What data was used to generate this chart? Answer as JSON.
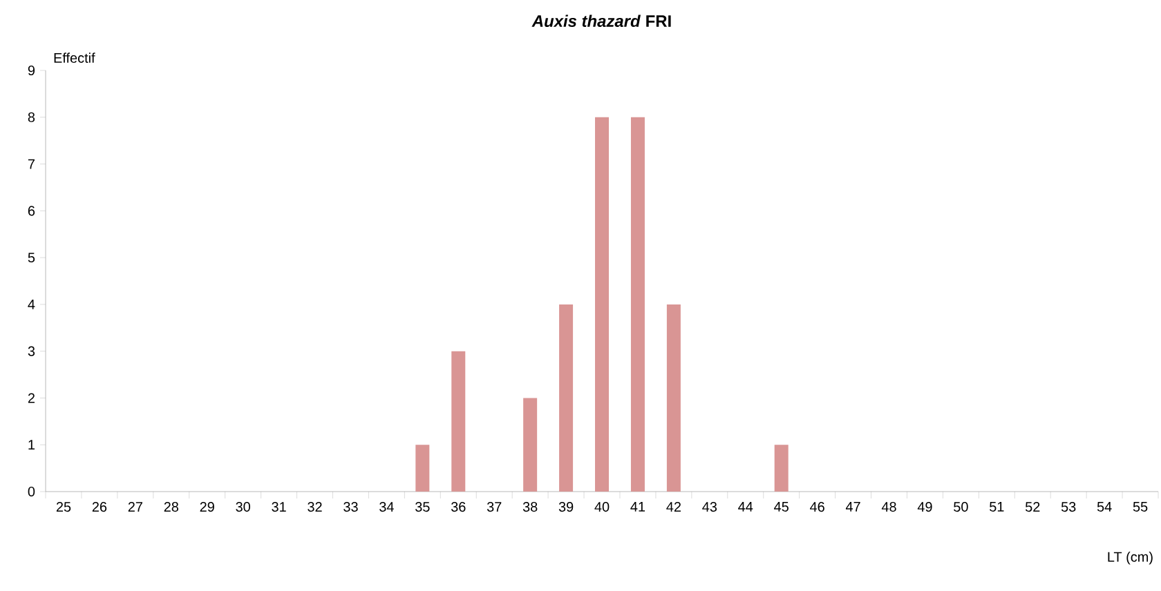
{
  "chart_data": {
    "type": "bar",
    "title": "*Auxis thazard* FRI",
    "xlabel": "LT (cm)",
    "ylabel": "Effectif",
    "categories": [
      "25",
      "26",
      "27",
      "28",
      "29",
      "30",
      "31",
      "32",
      "33",
      "34",
      "35",
      "36",
      "37",
      "38",
      "39",
      "40",
      "41",
      "42",
      "43",
      "44",
      "45",
      "46",
      "47",
      "48",
      "49",
      "50",
      "51",
      "52",
      "53",
      "54",
      "55"
    ],
    "values": [
      0,
      0,
      0,
      0,
      0,
      0,
      0,
      0,
      0,
      0,
      1,
      3,
      0,
      2,
      4,
      8,
      8,
      4,
      0,
      0,
      1,
      0,
      0,
      0,
      0,
      0,
      0,
      0,
      0,
      0,
      0
    ],
    "color": "#d99594",
    "ylim": [
      0,
      9
    ],
    "yticks": [
      0,
      1,
      2,
      3,
      4,
      5,
      6,
      7,
      8,
      9
    ]
  }
}
